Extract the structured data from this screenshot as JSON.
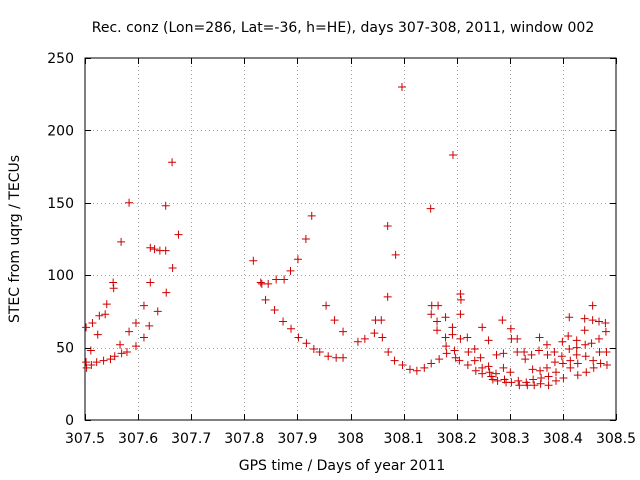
{
  "chart_data": {
    "type": "scatter",
    "title": "Rec. conz (Lon=286, Lat=-36, h=HE), days 307-308, 2011, window 002",
    "xlabel": "GPS time / Days of year 2011",
    "ylabel": "STEC from uqrg / TECUs",
    "xlim": [
      307.5,
      308.5
    ],
    "ylim": [
      0,
      250
    ],
    "xticks": [
      307.5,
      307.6,
      307.7,
      307.8,
      307.9,
      308,
      308.1,
      308.2,
      308.3,
      308.4,
      308.5
    ],
    "xtick_labels": [
      "307.5",
      "307.6",
      "307.7",
      "307.8",
      "307.9",
      "308",
      "308.1",
      "308.2",
      "308.3",
      "308.4",
      "308.5"
    ],
    "yticks": [
      0,
      50,
      100,
      150,
      200,
      250
    ],
    "ytick_labels": [
      "0",
      "50",
      "100",
      "150",
      "200",
      "250"
    ],
    "grid": true,
    "marker": "+",
    "color": "#cc0000",
    "series": [
      {
        "name": "STEC",
        "points": [
          [
            307.502,
            64
          ],
          [
            307.502,
            40
          ],
          [
            307.503,
            36
          ],
          [
            307.511,
            48
          ],
          [
            307.514,
            67
          ],
          [
            307.512,
            38
          ],
          [
            307.524,
            59
          ],
          [
            307.522,
            40
          ],
          [
            307.527,
            72
          ],
          [
            307.535,
            41
          ],
          [
            307.538,
            73
          ],
          [
            307.541,
            80
          ],
          [
            307.548,
            42
          ],
          [
            307.553,
            95
          ],
          [
            307.554,
            91
          ],
          [
            307.556,
            44
          ],
          [
            307.568,
            123
          ],
          [
            307.566,
            52
          ],
          [
            307.569,
            46
          ],
          [
            307.579,
            47
          ],
          [
            307.583,
            150
          ],
          [
            307.583,
            61
          ],
          [
            307.596,
            51
          ],
          [
            307.596,
            67
          ],
          [
            307.611,
            57
          ],
          [
            307.611,
            79
          ],
          [
            307.621,
            65
          ],
          [
            307.623,
            95
          ],
          [
            307.623,
            119
          ],
          [
            307.631,
            118
          ],
          [
            307.637,
            75
          ],
          [
            307.641,
            117
          ],
          [
            307.652,
            148
          ],
          [
            307.652,
            117
          ],
          [
            307.653,
            88
          ],
          [
            307.664,
            178
          ],
          [
            307.665,
            105
          ],
          [
            307.676,
            128
          ],
          [
            307.817,
            110
          ],
          [
            307.831,
            95
          ],
          [
            307.833,
            94
          ],
          [
            307.84,
            83
          ],
          [
            307.845,
            94
          ],
          [
            307.857,
            76
          ],
          [
            307.86,
            97
          ],
          [
            307.873,
            68
          ],
          [
            307.875,
            97
          ],
          [
            307.887,
            103
          ],
          [
            307.888,
            63
          ],
          [
            307.901,
            111
          ],
          [
            307.902,
            57
          ],
          [
            307.916,
            125
          ],
          [
            307.917,
            53
          ],
          [
            307.927,
            141
          ],
          [
            307.931,
            49
          ],
          [
            307.942,
            47
          ],
          [
            307.954,
            79
          ],
          [
            307.958,
            44
          ],
          [
            307.97,
            69
          ],
          [
            307.973,
            43
          ],
          [
            307.986,
            61
          ],
          [
            307.986,
            43
          ],
          [
            308.014,
            54
          ],
          [
            308.027,
            56
          ],
          [
            308.045,
            60
          ],
          [
            308.047,
            69
          ],
          [
            308.058,
            69
          ],
          [
            308.06,
            57
          ],
          [
            308.07,
            134
          ],
          [
            308.07,
            85
          ],
          [
            308.071,
            47
          ],
          [
            308.085,
            114
          ],
          [
            308.083,
            41
          ],
          [
            308.097,
            230
          ],
          [
            308.098,
            38
          ],
          [
            308.112,
            35
          ],
          [
            308.125,
            34
          ],
          [
            308.139,
            36
          ],
          [
            308.151,
            146
          ],
          [
            308.153,
            79
          ],
          [
            308.152,
            73
          ],
          [
            308.152,
            39
          ],
          [
            308.165,
            79
          ],
          [
            308.163,
            68
          ],
          [
            308.163,
            62
          ],
          [
            308.167,
            42
          ],
          [
            308.179,
            71
          ],
          [
            308.179,
            57
          ],
          [
            308.18,
            51
          ],
          [
            308.181,
            46
          ],
          [
            308.193,
            183
          ],
          [
            308.192,
            64
          ],
          [
            308.192,
            59
          ],
          [
            308.196,
            48
          ],
          [
            308.198,
            43
          ],
          [
            308.207,
            87
          ],
          [
            308.208,
            83
          ],
          [
            308.207,
            73
          ],
          [
            308.207,
            56
          ],
          [
            308.205,
            41
          ],
          [
            308.22,
            57
          ],
          [
            308.222,
            47
          ],
          [
            308.221,
            38
          ],
          [
            308.234,
            49
          ],
          [
            308.234,
            41
          ],
          [
            308.236,
            34
          ],
          [
            308.248,
            64
          ],
          [
            308.245,
            43
          ],
          [
            308.248,
            36
          ],
          [
            308.248,
            32
          ],
          [
            308.26,
            55
          ],
          [
            308.26,
            37
          ],
          [
            308.262,
            33
          ],
          [
            308.265,
            30
          ],
          [
            308.268,
            28
          ],
          [
            308.275,
            45
          ],
          [
            308.274,
            32
          ],
          [
            308.277,
            27
          ],
          [
            308.286,
            69
          ],
          [
            308.288,
            46
          ],
          [
            308.288,
            36
          ],
          [
            308.29,
            28
          ],
          [
            308.293,
            26
          ],
          [
            308.302,
            63
          ],
          [
            308.303,
            56
          ],
          [
            308.301,
            33
          ],
          [
            308.303,
            26
          ],
          [
            308.314,
            56
          ],
          [
            308.314,
            47
          ],
          [
            308.316,
            27
          ],
          [
            308.318,
            24
          ],
          [
            308.327,
            47
          ],
          [
            308.329,
            42
          ],
          [
            308.331,
            26
          ],
          [
            308.333,
            24
          ],
          [
            308.341,
            45
          ],
          [
            308.343,
            35
          ],
          [
            308.344,
            28
          ],
          [
            308.346,
            24
          ],
          [
            308.356,
            57
          ],
          [
            308.355,
            48
          ],
          [
            308.357,
            34
          ],
          [
            308.359,
            29
          ],
          [
            308.358,
            25
          ],
          [
            308.37,
            52
          ],
          [
            308.371,
            45
          ],
          [
            308.37,
            36
          ],
          [
            308.373,
            30
          ],
          [
            308.373,
            24
          ],
          [
            308.384,
            47
          ],
          [
            308.385,
            40
          ],
          [
            308.387,
            33
          ],
          [
            308.387,
            27
          ],
          [
            308.399,
            54
          ],
          [
            308.398,
            44
          ],
          [
            308.4,
            39
          ],
          [
            308.401,
            29
          ],
          [
            308.412,
            71
          ],
          [
            308.41,
            58
          ],
          [
            308.412,
            49
          ],
          [
            308.414,
            41
          ],
          [
            308.414,
            36
          ],
          [
            308.426,
            55
          ],
          [
            308.426,
            50
          ],
          [
            308.426,
            45
          ],
          [
            308.428,
            39
          ],
          [
            308.428,
            31
          ],
          [
            308.441,
            70
          ],
          [
            308.441,
            62
          ],
          [
            308.442,
            52
          ],
          [
            308.443,
            44
          ],
          [
            308.444,
            33
          ],
          [
            308.456,
            79
          ],
          [
            308.456,
            69
          ],
          [
            308.454,
            53
          ],
          [
            308.457,
            41
          ],
          [
            308.458,
            36
          ],
          [
            308.468,
            68
          ],
          [
            308.468,
            56
          ],
          [
            308.469,
            47
          ],
          [
            308.471,
            39
          ],
          [
            308.48,
            67
          ],
          [
            308.481,
            61
          ],
          [
            308.482,
            47
          ],
          [
            308.483,
            38
          ]
        ]
      }
    ]
  }
}
